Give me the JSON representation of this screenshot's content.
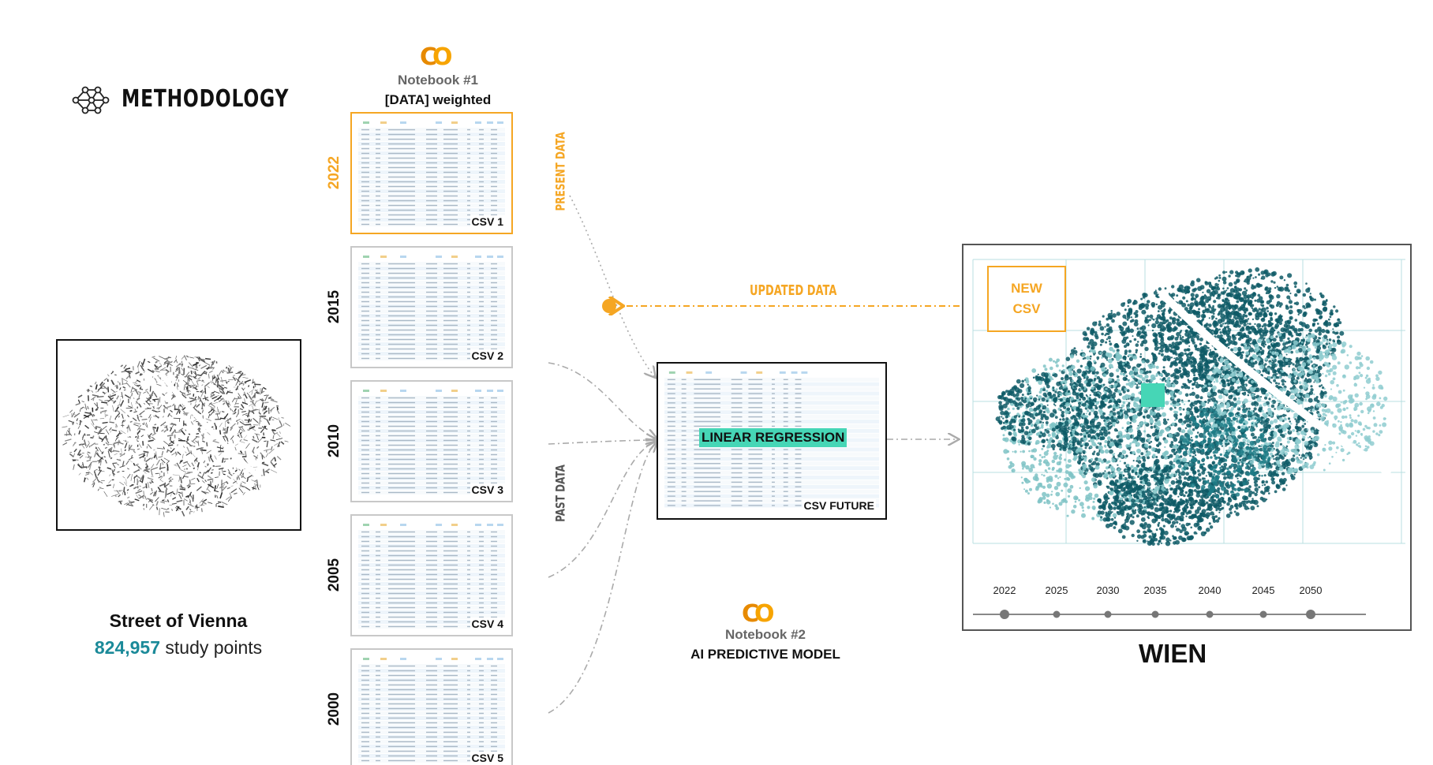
{
  "header": {
    "title": "METHODOLOGY",
    "icon": "neural-network-icon"
  },
  "notebook1": {
    "logo": "colab-logo",
    "title": "Notebook #1",
    "subtitle": "[DATA] weighted"
  },
  "notebook2": {
    "logo": "colab-logo",
    "title": "Notebook #2",
    "subtitle": "AI PREDICTIVE MODEL"
  },
  "csv_cards": [
    {
      "year": "2022",
      "label": "CSV 1",
      "active": true
    },
    {
      "year": "2015",
      "label": "CSV 2",
      "active": false
    },
    {
      "year": "2010",
      "label": "CSV 3",
      "active": false
    },
    {
      "year": "2005",
      "label": "CSV 4",
      "active": false
    },
    {
      "year": "2000",
      "label": "CSV 5",
      "active": false
    }
  ],
  "labels": {
    "present": "PRESENT DATA",
    "past": "PAST DATA",
    "updated": "UPDATED DATA"
  },
  "model": {
    "badge": "LINEAR REGRESSION",
    "output_label": "CSV FUTURE"
  },
  "map": {
    "new_csv_line1": "NEW",
    "new_csv_line2": "CSV",
    "timeline": [
      "2022",
      "2025",
      "2030",
      "2035",
      "2040",
      "2045",
      "2050"
    ],
    "city": "WIEN"
  },
  "vienna": {
    "title": "Street of Vienna",
    "count": "824,957",
    "count_suffix": "study points"
  },
  "colors": {
    "accent": "#f5a623",
    "teal_dark": "#0e5a66",
    "teal_light": "#7fc3c6",
    "highlight": "#46d6b6",
    "count": "#1b8a99"
  }
}
